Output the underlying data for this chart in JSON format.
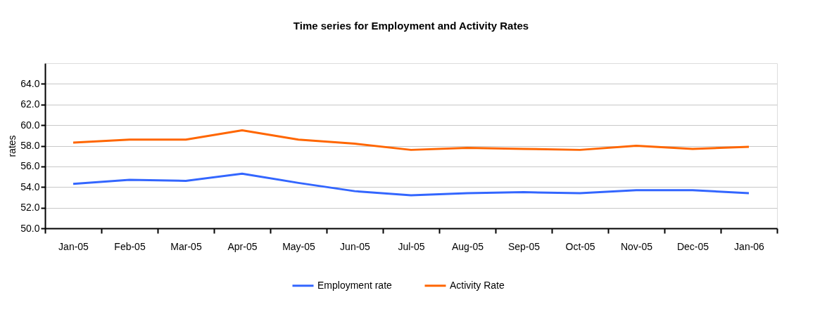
{
  "chart_data": {
    "type": "line",
    "title": "Time series for Employment and Activity Rates",
    "ylabel": "rates",
    "categories": [
      "Jan-05",
      "Feb-05",
      "Mar-05",
      "Apr-05",
      "May-05",
      "Jun-05",
      "Jul-05",
      "Aug-05",
      "Sep-05",
      "Oct-05",
      "Nov-05",
      "Dec-05",
      "Jan-06"
    ],
    "series": [
      {
        "name": "Employment rate",
        "color": "#3366ff",
        "values": [
          54.3,
          54.7,
          54.6,
          55.3,
          54.4,
          53.6,
          53.2,
          53.4,
          53.5,
          53.4,
          53.7,
          53.7,
          53.4
        ]
      },
      {
        "name": "Activity Rate",
        "color": "#ff6600",
        "values": [
          58.3,
          58.6,
          58.6,
          59.5,
          58.6,
          58.2,
          57.6,
          57.8,
          57.7,
          57.6,
          58.0,
          57.7,
          57.9
        ]
      }
    ],
    "ylim": [
      50,
      66
    ],
    "yticks": [
      {
        "value": 50,
        "label": "50.0"
      },
      {
        "value": 52,
        "label": "52.0"
      },
      {
        "value": 54,
        "label": "54.0"
      },
      {
        "value": 56,
        "label": "56.0"
      },
      {
        "value": 58,
        "label": "58.0"
      },
      {
        "value": 60,
        "label": "60.0"
      },
      {
        "value": 62,
        "label": "62.0"
      },
      {
        "value": 64,
        "label": "64.0"
      }
    ],
    "grid": "y",
    "legend": "bottom",
    "marker": "none",
    "line_style": "solid"
  }
}
